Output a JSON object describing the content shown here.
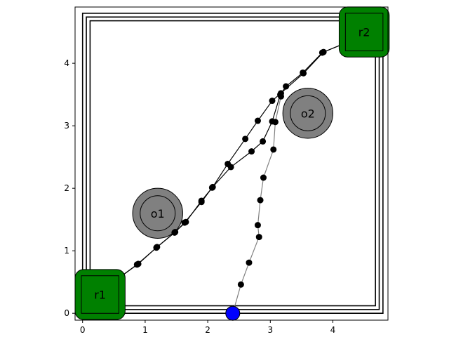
{
  "chart_data": {
    "type": "scatter",
    "title": "",
    "xlabel": "",
    "ylabel": "",
    "xlim": [
      -0.12,
      4.88
    ],
    "ylim": [
      -0.11,
      4.9
    ],
    "grid": false,
    "x_ticks": [
      0,
      1,
      2,
      3,
      4
    ],
    "y_ticks": [
      0,
      1,
      2,
      3,
      4
    ],
    "x_tick_labels": [
      "0",
      "1",
      "2",
      "3",
      "4"
    ],
    "y_tick_labels": [
      "0",
      "1",
      "2",
      "3",
      "4"
    ],
    "boundaries": [
      {
        "x0": 0.0,
        "y0": 0.0,
        "x1": 4.8,
        "y1": 4.8
      },
      {
        "x0": 0.06,
        "y0": 0.06,
        "x1": 4.74,
        "y1": 4.74
      },
      {
        "x0": 0.12,
        "y0": 0.12,
        "x1": 4.68,
        "y1": 4.68
      }
    ],
    "obstacles": [
      {
        "label": "o1",
        "x": 1.2,
        "y": 1.6,
        "r_outer": 0.4,
        "r_inner": 0.28,
        "color": "#808080"
      },
      {
        "label": "o2",
        "x": 3.6,
        "y": 3.2,
        "r_outer": 0.4,
        "r_inner": 0.28,
        "color": "#808080"
      }
    ],
    "robots": [
      {
        "label": "r1",
        "x": 0.28,
        "y": 0.3,
        "size": 0.8,
        "inner_size": 0.6,
        "color": "#008000"
      },
      {
        "label": "r2",
        "x": 4.5,
        "y": 4.5,
        "size": 0.8,
        "inner_size": 0.6,
        "color": "#008000"
      }
    ],
    "target": {
      "x": 2.4,
      "y": 0.0,
      "color": "#0000ff"
    },
    "series": [
      {
        "color": "#000000",
        "points": [
          {
            "x": 0.6,
            "y": 0.58
          },
          {
            "x": 0.87,
            "y": 0.78
          },
          {
            "x": 1.18,
            "y": 1.05
          },
          {
            "x": 1.47,
            "y": 1.29
          },
          {
            "x": 1.63,
            "y": 1.45
          },
          {
            "x": 1.9,
            "y": 1.78
          },
          {
            "x": 2.07,
            "y": 2.01
          },
          {
            "x": 2.37,
            "y": 2.34
          },
          {
            "x": 2.7,
            "y": 2.59
          },
          {
            "x": 2.88,
            "y": 2.75
          },
          {
            "x": 3.03,
            "y": 3.07
          },
          {
            "x": 3.16,
            "y": 3.5
          },
          {
            "x": 3.25,
            "y": 3.63
          },
          {
            "x": 3.52,
            "y": 3.85
          },
          {
            "x": 3.83,
            "y": 4.17
          },
          {
            "x": 4.22,
            "y": 4.33
          }
        ]
      },
      {
        "color": "#000000",
        "points": [
          {
            "x": 4.22,
            "y": 4.33
          },
          {
            "x": 3.85,
            "y": 4.18
          },
          {
            "x": 3.53,
            "y": 3.84
          },
          {
            "x": 3.03,
            "y": 3.4
          },
          {
            "x": 2.8,
            "y": 3.08
          },
          {
            "x": 2.6,
            "y": 2.79
          },
          {
            "x": 2.32,
            "y": 2.39
          },
          {
            "x": 2.08,
            "y": 2.02
          },
          {
            "x": 1.9,
            "y": 1.8
          },
          {
            "x": 1.65,
            "y": 1.46
          },
          {
            "x": 1.48,
            "y": 1.3
          },
          {
            "x": 1.19,
            "y": 1.06
          },
          {
            "x": 0.89,
            "y": 0.79
          },
          {
            "x": 0.6,
            "y": 0.58
          }
        ]
      },
      {
        "color": "#808080",
        "points": [
          {
            "x": 2.4,
            "y": 0.0
          },
          {
            "x": 2.53,
            "y": 0.46
          },
          {
            "x": 2.66,
            "y": 0.81
          },
          {
            "x": 2.82,
            "y": 1.22
          },
          {
            "x": 2.8,
            "y": 1.41
          },
          {
            "x": 2.84,
            "y": 1.81
          },
          {
            "x": 2.89,
            "y": 2.17
          },
          {
            "x": 3.05,
            "y": 2.62
          },
          {
            "x": 3.08,
            "y": 3.06
          },
          {
            "x": 3.17,
            "y": 3.47
          },
          {
            "x": 3.17,
            "y": 3.52
          }
        ]
      }
    ]
  }
}
